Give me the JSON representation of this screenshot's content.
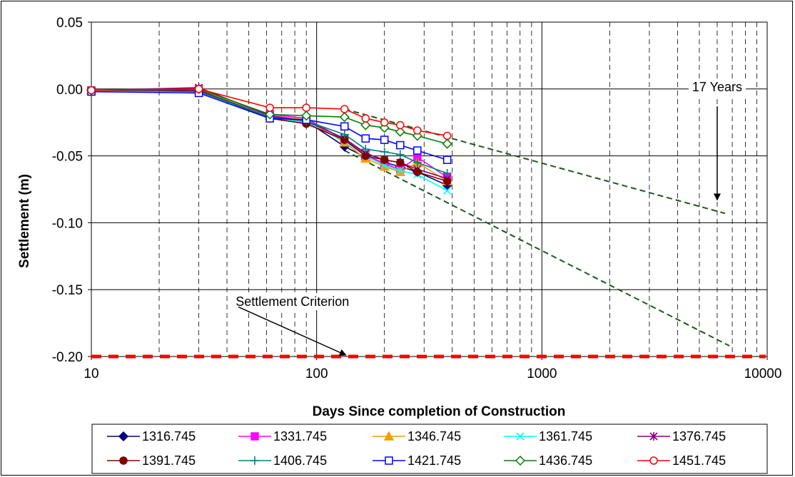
{
  "chart_data": {
    "type": "scatter",
    "title": "",
    "xlabel": "Days Since completion of Construction",
    "ylabel": "Settlement (m)",
    "xscale": "log",
    "xlim": [
      10,
      10000
    ],
    "ylim": [
      -0.2,
      0.05
    ],
    "x_ticks": [
      "10",
      "100",
      "1000",
      "10000"
    ],
    "y_ticks": [
      "0.05",
      "0.00",
      "-0.05",
      "-0.10",
      "-0.15",
      "-0.20"
    ],
    "y_tick_values": [
      0.05,
      0.0,
      -0.05,
      -0.1,
      -0.15,
      -0.2
    ],
    "x_tick_values": [
      10,
      100,
      1000,
      10000
    ],
    "grid": true,
    "legend_position": "bottom",
    "series": [
      {
        "name": "1316.745",
        "color": "#000080",
        "marker": "diamond-filled",
        "x": [
          10,
          30,
          62,
          90,
          133,
          165,
          200,
          235,
          280,
          380
        ],
        "y": [
          -0.001,
          -0.001,
          -0.021,
          -0.024,
          -0.043,
          -0.051,
          -0.055,
          -0.058,
          -0.062,
          -0.072
        ]
      },
      {
        "name": "1331.745",
        "color": "#ff00ff",
        "marker": "square-filled",
        "x": [
          10,
          30,
          62,
          90,
          133,
          165,
          200,
          235,
          280,
          380
        ],
        "y": [
          -0.001,
          0.0,
          -0.019,
          -0.022,
          -0.038,
          -0.049,
          -0.056,
          -0.06,
          -0.051,
          -0.066
        ]
      },
      {
        "name": "1346.745",
        "color": "#ff9900",
        "marker": "triangle-filled",
        "x": [
          10,
          30,
          62,
          90,
          133,
          165,
          200,
          235,
          280,
          380
        ],
        "y": [
          -0.001,
          0.0,
          -0.02,
          -0.023,
          -0.04,
          -0.052,
          -0.058,
          -0.062,
          -0.055,
          -0.069
        ]
      },
      {
        "name": "1361.745",
        "color": "#00ffff",
        "marker": "x",
        "x": [
          10,
          30,
          62,
          90,
          133,
          165,
          200,
          235,
          280,
          380
        ],
        "y": [
          -0.001,
          -0.001,
          -0.022,
          -0.025,
          -0.039,
          -0.05,
          -0.057,
          -0.061,
          -0.064,
          -0.076
        ]
      },
      {
        "name": "1376.745",
        "color": "#800080",
        "marker": "star",
        "x": [
          10,
          30,
          62,
          90,
          133,
          165,
          200,
          235,
          280,
          380
        ],
        "y": [
          -0.001,
          0.001,
          -0.02,
          -0.024,
          -0.037,
          -0.048,
          -0.053,
          -0.055,
          -0.06,
          -0.067
        ]
      },
      {
        "name": "1391.745",
        "color": "#800000",
        "marker": "circle-filled",
        "x": [
          10,
          30,
          62,
          90,
          133,
          165,
          200,
          235,
          280,
          380
        ],
        "y": [
          -0.001,
          -0.001,
          -0.022,
          -0.026,
          -0.038,
          -0.05,
          -0.053,
          -0.055,
          -0.062,
          -0.069
        ]
      },
      {
        "name": "1406.745",
        "color": "#008080",
        "marker": "plus",
        "x": [
          10,
          30,
          62,
          90,
          133,
          165,
          200,
          235,
          280,
          380
        ],
        "y": [
          -0.001,
          -0.002,
          -0.021,
          -0.024,
          -0.034,
          -0.045,
          -0.047,
          -0.049,
          -0.055,
          -0.063
        ]
      },
      {
        "name": "1421.745",
        "color": "#0000ff",
        "marker": "square-open",
        "x": [
          10,
          30,
          62,
          90,
          133,
          165,
          200,
          235,
          280,
          380
        ],
        "y": [
          -0.002,
          -0.003,
          -0.022,
          -0.023,
          -0.028,
          -0.037,
          -0.038,
          -0.042,
          -0.046,
          -0.053
        ]
      },
      {
        "name": "1436.745",
        "color": "#008000",
        "marker": "diamond-open",
        "x": [
          10,
          30,
          62,
          90,
          133,
          165,
          200,
          235,
          280,
          380
        ],
        "y": [
          -0.001,
          0.0,
          -0.019,
          -0.02,
          -0.021,
          -0.027,
          -0.029,
          -0.032,
          -0.035,
          -0.041
        ]
      },
      {
        "name": "1451.745",
        "color": "#ff0000",
        "marker": "circle-open",
        "x": [
          10,
          30,
          62,
          90,
          133,
          165,
          200,
          235,
          280,
          380
        ],
        "y": [
          -0.001,
          0.0,
          -0.014,
          -0.014,
          -0.015,
          -0.022,
          -0.025,
          -0.027,
          -0.031,
          -0.035
        ]
      }
    ],
    "trend_lines": [
      {
        "color": "#1a5a1a",
        "style": "dashed",
        "x": [
          133,
          6500
        ],
        "y": [
          -0.015,
          -0.093
        ]
      },
      {
        "color": "#1a5a1a",
        "style": "dashed",
        "x": [
          133,
          6800
        ],
        "y": [
          -0.046,
          -0.192
        ]
      }
    ],
    "criterion_line": {
      "color": "#ff0000",
      "style": "dashed",
      "y": -0.2
    },
    "annotations": [
      {
        "text": "17 Years",
        "label_x": 6000,
        "label_y": 0.0015,
        "arrow_from": [
          6000,
          -0.013
        ],
        "arrow_to": [
          6000,
          -0.083
        ]
      },
      {
        "text": "Settlement Criterion",
        "label_x": 45,
        "label_y": -0.159,
        "arrow_from": [
          45,
          -0.163
        ],
        "arrow_to": [
          135,
          -0.199
        ]
      }
    ]
  }
}
